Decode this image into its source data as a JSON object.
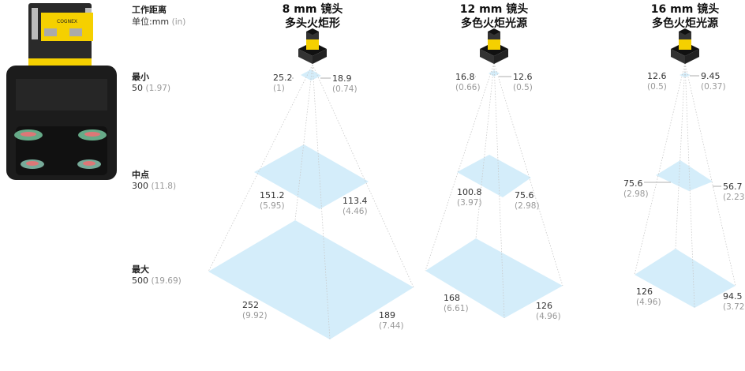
{
  "legend": {
    "title": "工作距离",
    "units_label": "单位:mm",
    "units_alt": "(in)",
    "rows": [
      {
        "label": "最小",
        "mm": "50",
        "in": "(1.97)"
      },
      {
        "label": "中点",
        "mm": "300",
        "in": "(11.8)"
      },
      {
        "label": "最大",
        "mm": "500",
        "in": "(19.69)"
      }
    ]
  },
  "camera_logo": "COGNEX",
  "colors": {
    "fov": "#d2ecfa",
    "camera_accent": "#f5d000",
    "camera_body": "#1a1a1a"
  },
  "lenses": [
    {
      "title": "8 mm 镜头",
      "subtitle": "多头火炬形",
      "min": {
        "w": "25.2",
        "w_in": "(1)",
        "h": "18.9",
        "h_in": "(0.74)"
      },
      "mid": {
        "w": "151.2",
        "w_in": "(5.95)",
        "h": "113.4",
        "h_in": "(4.46)"
      },
      "max": {
        "w": "252",
        "w_in": "(9.92)",
        "h": "189",
        "h_in": "(7.44)"
      }
    },
    {
      "title": "12 mm 镜头",
      "subtitle": "多色火炬光源",
      "min": {
        "w": "16.8",
        "w_in": "(0.66)",
        "h": "12.6",
        "h_in": "(0.5)"
      },
      "mid": {
        "w": "100.8",
        "w_in": "(3.97)",
        "h": "75.6",
        "h_in": "(2.98)"
      },
      "max": {
        "w": "168",
        "w_in": "(6.61)",
        "h": "126",
        "h_in": "(4.96)"
      }
    },
    {
      "title": "16 mm 镜头",
      "subtitle": "多色火炬光源",
      "min": {
        "w": "12.6",
        "w_in": "(0.5)",
        "h": "9.45",
        "h_in": "(0.37)"
      },
      "mid": {
        "w": "75.6",
        "w_in": "(2.98)",
        "h": "56.7",
        "h_in": "(2.23)"
      },
      "max": {
        "w": "126",
        "w_in": "(4.96)",
        "h": "94.5",
        "h_in": "(3.72)"
      }
    }
  ]
}
